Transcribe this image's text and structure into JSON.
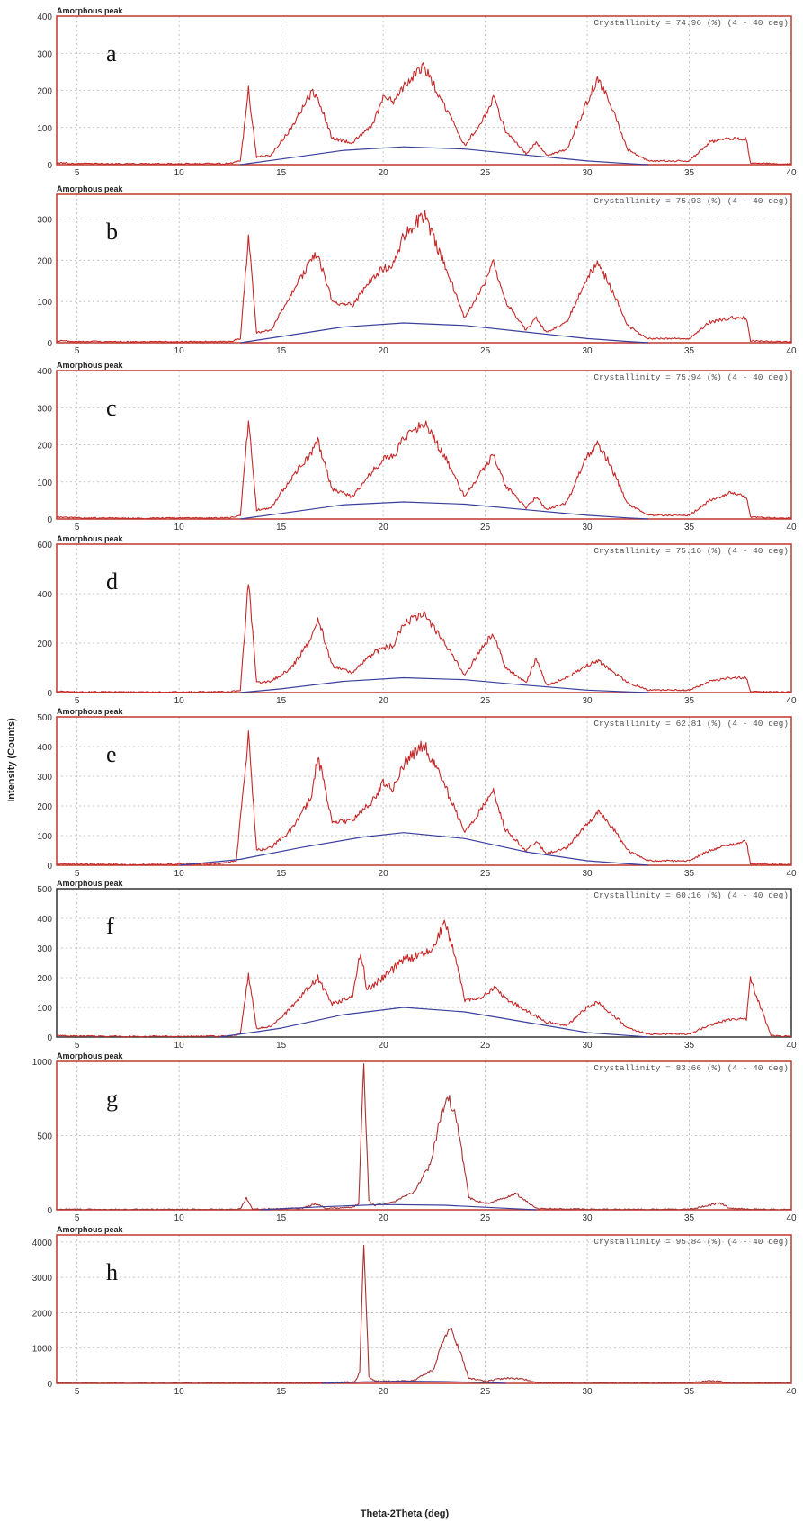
{
  "figure": {
    "ylabel": "Intensity (Counts)",
    "xlabel": "Theta-2Theta (deg)"
  },
  "chart_data": [
    {
      "type": "line",
      "panel_label": "a",
      "title": "Amorphous peak",
      "annotation": "Crystallinity = 74.96 (%) (4 - 40 deg)",
      "xlim": [
        4,
        40
      ],
      "ylim": [
        0,
        400
      ],
      "xticks": [
        5,
        10,
        15,
        20,
        25,
        30,
        35,
        40
      ],
      "yticks": [
        0,
        100,
        200,
        300,
        400
      ],
      "grid": true,
      "frame_color": "#c0392b",
      "series": [
        {
          "color": "#c62828",
          "x": [
            4,
            5,
            8,
            12.5,
            13,
            13.4,
            13.8,
            14.5,
            15.5,
            16.5,
            16.8,
            17.5,
            18.5,
            19.5,
            20,
            20.5,
            21,
            22,
            23,
            24,
            25,
            25.4,
            26,
            27,
            27.5,
            28,
            29,
            30,
            30.5,
            31,
            32,
            33,
            35,
            36,
            37,
            37.8,
            38,
            39,
            40
          ],
          "y": [
            5,
            3,
            2,
            3,
            10,
            200,
            20,
            25,
            100,
            195,
            180,
            70,
            60,
            110,
            180,
            170,
            210,
            265,
            160,
            50,
            130,
            180,
            90,
            30,
            60,
            25,
            40,
            170,
            230,
            180,
            40,
            10,
            10,
            60,
            70,
            70,
            5,
            3,
            2
          ]
        },
        {
          "color": "#3a3f9e",
          "x": [
            13,
            15,
            18,
            21,
            24,
            27,
            30,
            32,
            33
          ],
          "y": [
            0,
            15,
            38,
            48,
            42,
            26,
            10,
            3,
            0
          ]
        }
      ]
    },
    {
      "type": "line",
      "panel_label": "b",
      "title": "Amorphous peak",
      "annotation": "Crystallinity = 75.93 (%) (4 - 40 deg)",
      "xlim": [
        4,
        40
      ],
      "ylim": [
        0,
        360
      ],
      "xticks": [
        5,
        10,
        15,
        20,
        25,
        30,
        35,
        40
      ],
      "yticks": [
        0,
        100,
        200,
        300
      ],
      "grid": true,
      "frame_color": "#c0392b",
      "series": [
        {
          "color": "#c62828",
          "x": [
            4,
            5,
            8,
            12.5,
            13,
            13.4,
            13.8,
            14.5,
            15.5,
            16.5,
            16.8,
            17.5,
            18.5,
            19.5,
            20,
            20.5,
            21,
            22,
            23,
            24,
            25,
            25.4,
            26,
            27,
            27.5,
            28,
            29,
            30,
            30.5,
            31,
            32,
            33,
            35,
            36,
            37,
            37.8,
            38,
            39,
            40
          ],
          "y": [
            5,
            3,
            2,
            3,
            10,
            255,
            25,
            30,
            120,
            200,
            215,
            100,
            90,
            160,
            180,
            190,
            260,
            310,
            190,
            60,
            150,
            200,
            100,
            30,
            60,
            25,
            50,
            160,
            190,
            150,
            40,
            10,
            10,
            50,
            60,
            60,
            5,
            3,
            2
          ]
        },
        {
          "color": "#3a3f9e",
          "x": [
            13,
            15,
            18,
            21,
            24,
            27,
            30,
            32,
            33
          ],
          "y": [
            0,
            15,
            38,
            48,
            42,
            26,
            10,
            3,
            0
          ]
        }
      ]
    },
    {
      "type": "line",
      "panel_label": "c",
      "title": "Amorphous peak",
      "annotation": "Crystallinity = 75.94 (%) (4 - 40 deg)",
      "xlim": [
        4,
        40
      ],
      "ylim": [
        0,
        400
      ],
      "xticks": [
        5,
        10,
        15,
        20,
        25,
        30,
        35,
        40
      ],
      "yticks": [
        0,
        100,
        200,
        300,
        400
      ],
      "grid": true,
      "frame_color": "#c0392b",
      "series": [
        {
          "color": "#c62828",
          "x": [
            4,
            5,
            8,
            12.5,
            13,
            13.4,
            13.8,
            14.5,
            15.5,
            16.5,
            16.8,
            17.5,
            18.5,
            19.5,
            20,
            20.5,
            21,
            22,
            23,
            24,
            25,
            25.4,
            26,
            27,
            27.5,
            28,
            29,
            30,
            30.5,
            31,
            32,
            33,
            35,
            36,
            37,
            37.8,
            38,
            39,
            40
          ],
          "y": [
            5,
            3,
            2,
            3,
            10,
            265,
            25,
            30,
            110,
            180,
            210,
            80,
            60,
            130,
            160,
            170,
            220,
            260,
            170,
            60,
            140,
            175,
            90,
            30,
            60,
            25,
            45,
            170,
            200,
            160,
            40,
            10,
            10,
            50,
            70,
            60,
            5,
            3,
            2
          ]
        },
        {
          "color": "#3a3f9e",
          "x": [
            13,
            15,
            18,
            21,
            24,
            27,
            30,
            32,
            33
          ],
          "y": [
            0,
            15,
            38,
            46,
            40,
            25,
            10,
            3,
            0
          ]
        }
      ]
    },
    {
      "type": "line",
      "panel_label": "d",
      "title": "Amorphous peak",
      "annotation": "Crystallinity = 75.16 (%) (4 - 40 deg)",
      "xlim": [
        4,
        40
      ],
      "ylim": [
        0,
        600
      ],
      "xticks": [
        5,
        10,
        15,
        20,
        25,
        30,
        35,
        40
      ],
      "yticks": [
        0,
        200,
        400,
        600
      ],
      "grid": true,
      "frame_color": "#c0392b",
      "series": [
        {
          "color": "#c62828",
          "x": [
            4,
            5,
            8,
            12.5,
            13,
            13.4,
            13.8,
            14.5,
            15.5,
            16.5,
            16.8,
            17.5,
            18.5,
            19.5,
            20,
            20.5,
            21,
            22,
            23,
            24,
            25,
            25.4,
            26,
            27,
            27.5,
            28,
            29,
            30,
            30.5,
            31,
            32,
            33,
            35,
            36,
            37,
            37.8,
            38,
            39,
            40
          ],
          "y": [
            5,
            3,
            2,
            3,
            10,
            450,
            40,
            45,
            100,
            220,
            300,
            110,
            80,
            160,
            180,
            190,
            280,
            320,
            200,
            70,
            200,
            240,
            100,
            40,
            140,
            30,
            60,
            110,
            130,
            100,
            40,
            10,
            10,
            45,
            60,
            60,
            5,
            3,
            2
          ]
        },
        {
          "color": "#3a3f9e",
          "x": [
            13,
            15,
            18,
            21,
            24,
            27,
            30,
            32,
            33
          ],
          "y": [
            0,
            15,
            45,
            60,
            52,
            30,
            10,
            3,
            0
          ]
        }
      ]
    },
    {
      "type": "line",
      "panel_label": "e",
      "title": "Amorphous peak",
      "annotation": "Crystallinity = 62.81 (%) (4 - 40 deg)",
      "xlim": [
        4,
        40
      ],
      "ylim": [
        0,
        500
      ],
      "xticks": [
        5,
        10,
        15,
        20,
        25,
        30,
        35,
        40
      ],
      "yticks": [
        0,
        100,
        200,
        300,
        400,
        500
      ],
      "grid": true,
      "frame_color": "#c0392b",
      "series": [
        {
          "color": "#c62828",
          "x": [
            4,
            5,
            8,
            12,
            12.8,
            13.4,
            13.8,
            14.5,
            15.5,
            16.5,
            16.8,
            17.5,
            18.5,
            19.5,
            20,
            20.5,
            21,
            22,
            23,
            24,
            25,
            25.4,
            26,
            27,
            27.5,
            28,
            29,
            30,
            30.5,
            31,
            32,
            33,
            35,
            36,
            37,
            37.8,
            38,
            39,
            40
          ],
          "y": [
            5,
            3,
            2,
            5,
            15,
            430,
            50,
            60,
            120,
            230,
            370,
            150,
            150,
            220,
            280,
            260,
            340,
            410,
            270,
            110,
            210,
            250,
            120,
            50,
            80,
            40,
            60,
            140,
            180,
            150,
            50,
            15,
            15,
            50,
            70,
            80,
            5,
            3,
            2
          ]
        },
        {
          "color": "#3a3f9e",
          "x": [
            10,
            13,
            16,
            19,
            21,
            24,
            27,
            30,
            32,
            33
          ],
          "y": [
            0,
            20,
            60,
            95,
            110,
            90,
            45,
            15,
            5,
            0
          ]
        }
      ]
    },
    {
      "type": "line",
      "panel_label": "f",
      "title": "Amorphous peak",
      "annotation": "Crystallinity = 60.16 (%) (4 - 40 deg)",
      "xlim": [
        4,
        40
      ],
      "ylim": [
        0,
        500
      ],
      "xticks": [
        5,
        10,
        15,
        20,
        25,
        30,
        35,
        40
      ],
      "yticks": [
        0,
        100,
        200,
        300,
        400,
        500
      ],
      "grid": true,
      "frame_color": "#333333",
      "series": [
        {
          "color": "#c62828",
          "x": [
            4,
            5,
            8,
            12.5,
            13,
            13.4,
            13.8,
            14.5,
            15.5,
            16.5,
            16.8,
            17.5,
            18.5,
            18.9,
            19.2,
            20,
            21,
            22,
            22.5,
            23,
            23.6,
            24,
            25,
            25.5,
            26,
            27,
            28,
            29,
            30,
            30.5,
            31,
            32,
            33,
            35,
            36,
            37,
            37.8,
            38,
            39,
            40
          ],
          "y": [
            5,
            3,
            2,
            3,
            10,
            210,
            30,
            35,
            100,
            180,
            200,
            110,
            140,
            290,
            160,
            200,
            260,
            280,
            300,
            390,
            260,
            120,
            140,
            165,
            130,
            90,
            50,
            40,
            100,
            120,
            90,
            30,
            10,
            10,
            40,
            60,
            60,
            195,
            5,
            2
          ]
        },
        {
          "color": "#3a3f9e",
          "x": [
            12,
            15,
            18,
            21,
            24,
            27,
            30,
            32,
            33
          ],
          "y": [
            0,
            30,
            75,
            100,
            85,
            50,
            15,
            5,
            0
          ]
        }
      ]
    },
    {
      "type": "line",
      "panel_label": "g",
      "title": "Amorphous peak",
      "annotation": "Crystallinity = 83.66 (%) (4 - 40 deg)",
      "xlim": [
        4,
        40
      ],
      "ylim": [
        0,
        1000
      ],
      "xticks": [
        5,
        10,
        15,
        20,
        25,
        30,
        35,
        40
      ],
      "yticks": [
        0,
        500,
        1000
      ],
      "grid": true,
      "frame_color": "#c0392b",
      "series": [
        {
          "color": "#a83232",
          "x": [
            4,
            8,
            12.5,
            13,
            13.3,
            13.6,
            14,
            16,
            16.7,
            17.2,
            18.5,
            18.8,
            19.05,
            19.3,
            19.6,
            20.5,
            21.5,
            22.3,
            22.8,
            23.2,
            23.6,
            24.2,
            25,
            26,
            26.5,
            27,
            27.5,
            30,
            35,
            36.5,
            37,
            38,
            40
          ],
          "y": [
            3,
            2,
            3,
            5,
            80,
            5,
            5,
            10,
            40,
            10,
            15,
            40,
            980,
            60,
            30,
            50,
            120,
            300,
            620,
            760,
            620,
            80,
            40,
            80,
            110,
            60,
            10,
            3,
            3,
            45,
            10,
            3,
            2
          ]
        },
        {
          "color": "#3a3f9e",
          "x": [
            14,
            17,
            20,
            23,
            26,
            27.5
          ],
          "y": [
            0,
            20,
            35,
            30,
            10,
            0
          ]
        }
      ]
    },
    {
      "type": "line",
      "panel_label": "h",
      "title": "Amorphous peak",
      "annotation": "Crystallinity = 95.84 (%) (4 - 40 deg)",
      "xlim": [
        4,
        40
      ],
      "ylim": [
        0,
        4200
      ],
      "xticks": [
        5,
        10,
        15,
        20,
        25,
        30,
        35,
        40
      ],
      "yticks": [
        0,
        1000,
        2000,
        3000,
        4000
      ],
      "grid": true,
      "frame_color": "#c0392b",
      "series": [
        {
          "color": "#a83232",
          "x": [
            4,
            10,
            14,
            17,
            18.6,
            18.85,
            19.05,
            19.3,
            19.6,
            20.5,
            21.5,
            22.5,
            22.9,
            23.3,
            23.7,
            24.2,
            25,
            26,
            26.8,
            27.5,
            30,
            35,
            36,
            36.5,
            37,
            40
          ],
          "y": [
            5,
            5,
            10,
            20,
            40,
            300,
            4100,
            200,
            60,
            60,
            80,
            400,
            1200,
            1560,
            1000,
            150,
            60,
            150,
            140,
            20,
            10,
            10,
            70,
            50,
            10,
            5
          ]
        },
        {
          "color": "#3a3f9e",
          "x": [
            17,
            19,
            21,
            23,
            25,
            26
          ],
          "y": [
            0,
            40,
            60,
            50,
            25,
            0
          ]
        }
      ]
    }
  ]
}
